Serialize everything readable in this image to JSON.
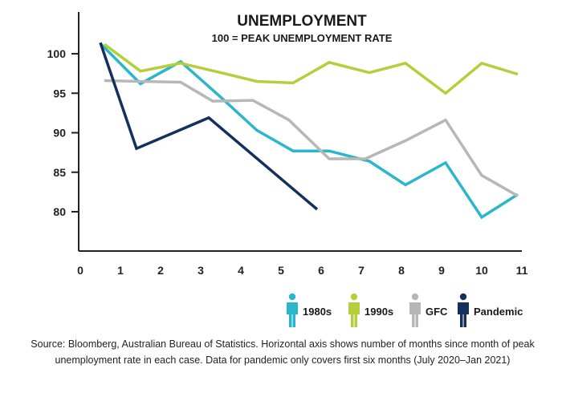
{
  "chart_data": {
    "type": "line",
    "title": "UNEMPLOYMENT",
    "subtitle": "100 = PEAK UNEMPLOYMENT RATE",
    "xlabel": "",
    "ylabel": "",
    "xlim": [
      0,
      11
    ],
    "ylim": [
      75,
      105
    ],
    "x_ticks": [
      0,
      1,
      2,
      3,
      4,
      5,
      6,
      7,
      8,
      9,
      10,
      11
    ],
    "y_ticks": [
      80,
      85,
      90,
      95,
      100
    ],
    "grid": false,
    "legend_position": "bottom-right",
    "series": [
      {
        "name": "1980s",
        "color": "#2bb6cc",
        "x": [
          0.5,
          1.5,
          2.5,
          3.5,
          4.4,
          5.3,
          6.2,
          7.2,
          8.1,
          9.1,
          10.0,
          10.9
        ],
        "values": [
          101.3,
          96.2,
          99.0,
          94.5,
          90.3,
          87.7,
          87.7,
          86.4,
          83.4,
          86.2,
          79.3,
          82.2
        ]
      },
      {
        "name": "1990s",
        "color": "#b5cf3c",
        "x": [
          0.6,
          1.5,
          2.5,
          3.5,
          4.4,
          5.3,
          6.2,
          7.2,
          8.1,
          9.1,
          10.0,
          10.9
        ],
        "values": [
          101.2,
          97.8,
          98.8,
          97.6,
          96.5,
          96.3,
          98.9,
          97.6,
          98.8,
          95.0,
          98.8,
          97.4
        ]
      },
      {
        "name": "GFC",
        "color": "#b7b7b7",
        "x": [
          0.6,
          1.5,
          2.5,
          3.3,
          4.3,
          5.2,
          6.2,
          7.1,
          8.1,
          9.1,
          10.0,
          10.9
        ],
        "values": [
          96.6,
          96.5,
          96.4,
          94.0,
          94.1,
          91.6,
          86.7,
          86.7,
          89.0,
          91.6,
          84.6,
          82.0
        ]
      },
      {
        "name": "Pandemic",
        "color": "#14305d",
        "x": [
          0.5,
          1.4,
          3.2,
          5.9
        ],
        "values": [
          101.4,
          88.0,
          91.9,
          80.3
        ]
      }
    ]
  },
  "legend": {
    "items": [
      {
        "label": "1980s",
        "color": "#2bb6cc",
        "icon": "person-icon"
      },
      {
        "label": "1990s",
        "color": "#b5cf3c",
        "icon": "person-icon"
      },
      {
        "label": "GFC",
        "color": "#b7b7b7",
        "icon": "person-icon"
      },
      {
        "label": "Pandemic",
        "color": "#14305d",
        "icon": "person-icon"
      }
    ]
  },
  "source_note": "Source: Bloomberg, Australian Bureau of Statistics. Horizontal axis shows number of months since month of peak unemployment rate in each case. Data for pandemic only covers first six months (July 2020–Jan 2021)"
}
